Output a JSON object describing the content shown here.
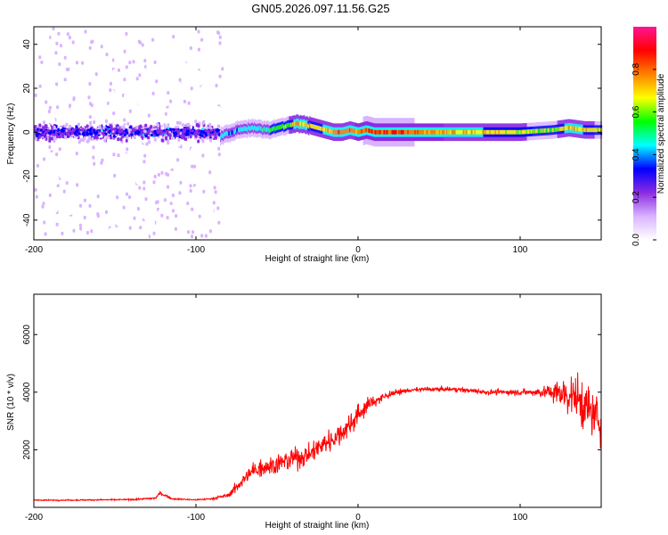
{
  "figure": {
    "title": "GN05.2026.097.11.56.G25"
  },
  "chart_data": [
    {
      "type": "heatmap",
      "title": "",
      "xlabel": "Height of straight line (km)",
      "ylabel": "Frequency (Hz)",
      "xlim": [
        -200,
        150
      ],
      "ylim": [
        -49,
        48
      ],
      "x_ticks": [
        -200,
        -100,
        0,
        100
      ],
      "x_tick_labels": [
        "-200",
        "-100",
        "0",
        "100"
      ],
      "y_ticks": [
        40,
        20,
        0,
        -20,
        -40
      ],
      "y_tick_labels": [
        "40",
        "20",
        "0",
        "-20",
        "-40"
      ],
      "colorbar": {
        "label": "Normalized spectral amplitude",
        "range": [
          0,
          1
        ],
        "ticks": [
          0.0,
          0.2,
          0.4,
          0.6,
          0.8
        ],
        "tick_labels": [
          "0.0",
          "0.2",
          "0.4",
          "0.6",
          "0.8"
        ],
        "colormap": [
          "#ffffff",
          "#d9b3ff",
          "#8a2be2",
          "#0000ff",
          "#00ffff",
          "#00ff00",
          "#ffff00",
          "#ff8000",
          "#ff0000",
          "#ff1493"
        ]
      },
      "description_of_data": {
        "scatter_region_x": [
          -200,
          -83
        ],
        "scatter_band_center_hz": 0,
        "scatter_band_halfwidth_hz": 8,
        "ridge": {
          "x": [
            -85,
            -75,
            -65,
            -55,
            -45,
            -38,
            -30,
            -25,
            -20,
            -15,
            -10,
            -5,
            0,
            5,
            10,
            20,
            30,
            40,
            60,
            80,
            100,
            120,
            130,
            140,
            150
          ],
          "freq_hz": [
            -2,
            1,
            2,
            1,
            3,
            4,
            3,
            2,
            1,
            0,
            0,
            1,
            0,
            1,
            0,
            0,
            0,
            0,
            0,
            0,
            0,
            1,
            2,
            1,
            1
          ],
          "peak_amplitude": [
            0.5,
            0.5,
            0.55,
            0.6,
            0.7,
            0.85,
            0.8,
            0.75,
            0.85,
            0.9,
            0.9,
            0.9,
            0.9,
            0.95,
            0.95,
            0.95,
            0.95,
            0.9,
            0.85,
            0.8,
            0.75,
            0.7,
            0.85,
            0.8,
            0.7
          ]
        }
      }
    },
    {
      "type": "line",
      "title": "",
      "xlabel": "Height of straight line (km)",
      "ylabel": "SNR (10 * v/v)",
      "xlim": [
        -200,
        150
      ],
      "ylim": [
        0,
        7400
      ],
      "x_ticks": [
        -200,
        -100,
        0,
        100
      ],
      "x_tick_labels": [
        "-200",
        "-100",
        "0",
        "100"
      ],
      "y_ticks": [
        2000,
        4000,
        6000
      ],
      "y_tick_labels": [
        "2000",
        "4000",
        "6000"
      ],
      "color": "#ff0000",
      "series": [
        {
          "name": "SNR",
          "x": [
            -200,
            -180,
            -160,
            -140,
            -125,
            -122,
            -115,
            -100,
            -90,
            -80,
            -75,
            -70,
            -65,
            -60,
            -55,
            -50,
            -45,
            -40,
            -35,
            -30,
            -25,
            -20,
            -15,
            -10,
            -5,
            0,
            5,
            10,
            15,
            20,
            25,
            30,
            40,
            50,
            60,
            70,
            80,
            90,
            100,
            110,
            120,
            125,
            130,
            135,
            140,
            145,
            150
          ],
          "mean": [
            250,
            250,
            260,
            270,
            320,
            500,
            300,
            260,
            300,
            420,
            700,
            1000,
            1250,
            1400,
            1450,
            1500,
            1600,
            1700,
            1750,
            1850,
            2050,
            2250,
            2400,
            2600,
            2900,
            3200,
            3500,
            3700,
            3800,
            3950,
            4000,
            4050,
            4100,
            4100,
            4100,
            4050,
            4000,
            4000,
            4000,
            4000,
            4000,
            3950,
            3900,
            3800,
            3500,
            3200,
            3000
          ],
          "noise": [
            40,
            50,
            50,
            55,
            80,
            150,
            60,
            60,
            80,
            180,
            400,
            600,
            700,
            750,
            800,
            800,
            850,
            900,
            850,
            800,
            900,
            1000,
            950,
            900,
            900,
            800,
            700,
            500,
            400,
            250,
            200,
            180,
            180,
            180,
            180,
            180,
            200,
            220,
            250,
            350,
            700,
            1100,
            1500,
            1800,
            2000,
            1900,
            1700
          ]
        }
      ]
    }
  ]
}
